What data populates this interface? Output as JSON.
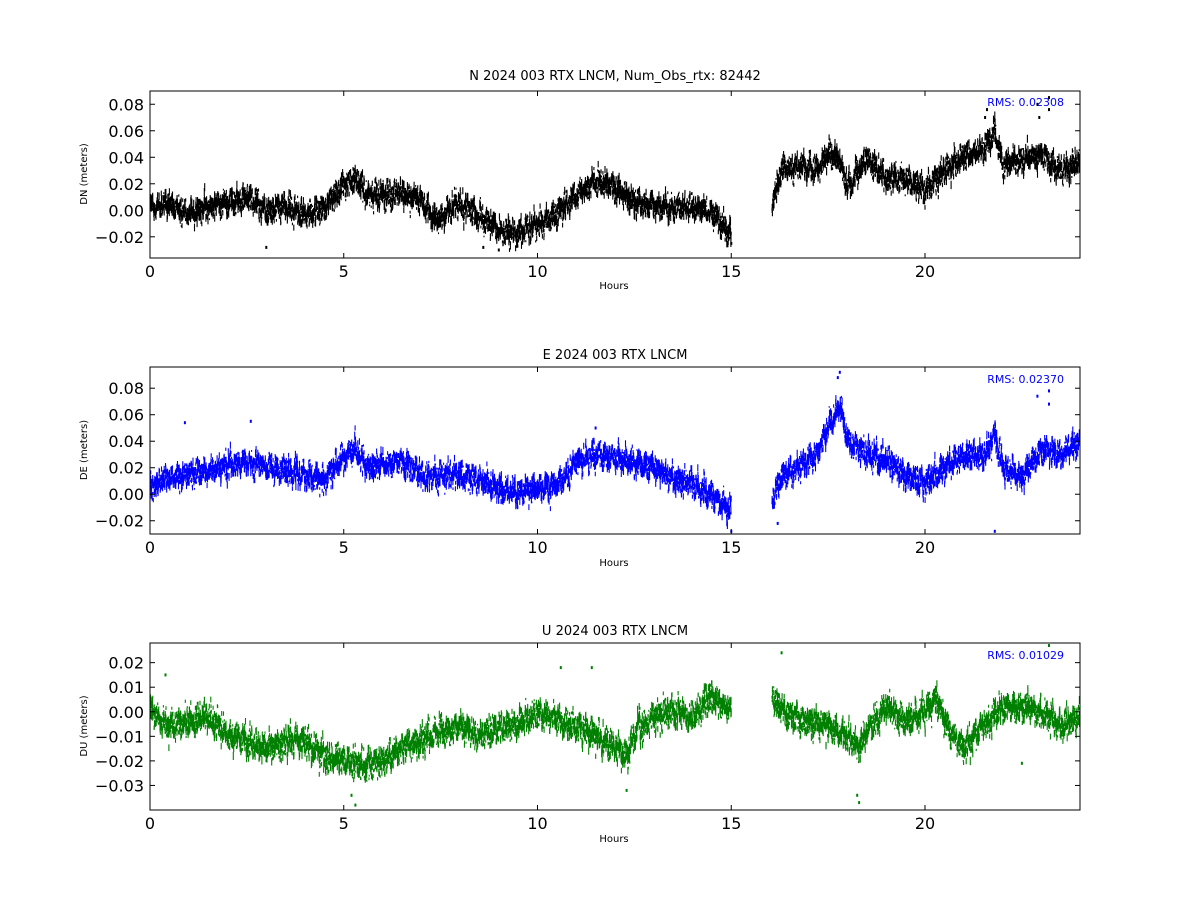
{
  "chart_data": [
    {
      "type": "scatter",
      "panel": "N",
      "title": "N 2024 003 RTX  LNCM, Num_Obs_rtx: 82442",
      "xlabel": "Hours",
      "ylabel": "DN (meters)",
      "xlim": [
        0,
        24
      ],
      "ylim": [
        -0.036,
        0.09
      ],
      "xticks": [
        0,
        5,
        10,
        15,
        20
      ],
      "yticks": [
        -0.02,
        0.0,
        0.02,
        0.04,
        0.06,
        0.08
      ],
      "ytick_labels": [
        "−0.02",
        "0.00",
        "0.02",
        "0.04",
        "0.06",
        "0.08"
      ],
      "color": "#000000",
      "annotation": "RMS:  0.02308",
      "annotation_color": "#0000ff",
      "gap": [
        15.0,
        16.05
      ],
      "trend": [
        [
          0.0,
          0.002
        ],
        [
          0.5,
          0.004
        ],
        [
          1.0,
          -0.002
        ],
        [
          1.5,
          0.003
        ],
        [
          2.0,
          0.006
        ],
        [
          2.5,
          0.01
        ],
        [
          3.0,
          0.0
        ],
        [
          3.5,
          0.003
        ],
        [
          4.0,
          -0.004
        ],
        [
          4.5,
          0.003
        ],
        [
          5.0,
          0.018
        ],
        [
          5.3,
          0.024
        ],
        [
          5.6,
          0.012
        ],
        [
          6.0,
          0.012
        ],
        [
          6.5,
          0.012
        ],
        [
          7.0,
          0.008
        ],
        [
          7.3,
          -0.008
        ],
        [
          7.6,
          -0.003
        ],
        [
          8.0,
          0.006
        ],
        [
          8.5,
          -0.005
        ],
        [
          9.0,
          -0.015
        ],
        [
          9.5,
          -0.018
        ],
        [
          10.0,
          -0.01
        ],
        [
          10.5,
          -0.003
        ],
        [
          11.0,
          0.012
        ],
        [
          11.5,
          0.023
        ],
        [
          12.0,
          0.016
        ],
        [
          12.5,
          0.006
        ],
        [
          13.0,
          0.004
        ],
        [
          13.5,
          0.002
        ],
        [
          14.0,
          0.003
        ],
        [
          14.5,
          -0.002
        ],
        [
          15.0,
          -0.018
        ],
        [
          16.05,
          0.004
        ],
        [
          16.3,
          0.03
        ],
        [
          16.7,
          0.034
        ],
        [
          17.2,
          0.03
        ],
        [
          17.5,
          0.043
        ],
        [
          17.8,
          0.038
        ],
        [
          18.0,
          0.018
        ],
        [
          18.5,
          0.038
        ],
        [
          19.0,
          0.024
        ],
        [
          19.5,
          0.024
        ],
        [
          20.0,
          0.015
        ],
        [
          20.5,
          0.03
        ],
        [
          21.0,
          0.04
        ],
        [
          21.5,
          0.045
        ],
        [
          21.8,
          0.06
        ],
        [
          22.0,
          0.035
        ],
        [
          22.5,
          0.038
        ],
        [
          23.0,
          0.042
        ],
        [
          23.5,
          0.03
        ],
        [
          24.0,
          0.037
        ]
      ],
      "noise": 0.0075,
      "outliers": [
        [
          21.6,
          0.076
        ],
        [
          21.55,
          0.07
        ],
        [
          22.9,
          0.08
        ],
        [
          22.95,
          0.07
        ],
        [
          23.2,
          0.085
        ],
        [
          23.2,
          0.076
        ],
        [
          9.0,
          -0.03
        ],
        [
          8.6,
          -0.028
        ],
        [
          15.0,
          -0.025
        ],
        [
          3.0,
          -0.028
        ],
        [
          10.9,
          0.016
        ]
      ]
    },
    {
      "type": "scatter",
      "panel": "E",
      "title": "E 2024 003 RTX  LNCM",
      "xlabel": "Hours",
      "ylabel": "DE (meters)",
      "xlim": [
        0,
        24
      ],
      "ylim": [
        -0.03,
        0.096
      ],
      "xticks": [
        0,
        5,
        10,
        15,
        20
      ],
      "yticks": [
        -0.02,
        0.0,
        0.02,
        0.04,
        0.06,
        0.08
      ],
      "ytick_labels": [
        "−0.02",
        "0.00",
        "0.02",
        "0.04",
        "0.06",
        "0.08"
      ],
      "color": "#0000ff",
      "annotation": "RMS:  0.02370",
      "annotation_color": "#0000ff",
      "gap": [
        15.0,
        16.05
      ],
      "trend": [
        [
          0.0,
          0.005
        ],
        [
          0.5,
          0.012
        ],
        [
          1.0,
          0.015
        ],
        [
          1.5,
          0.018
        ],
        [
          2.0,
          0.022
        ],
        [
          2.5,
          0.024
        ],
        [
          3.0,
          0.02
        ],
        [
          3.5,
          0.018
        ],
        [
          4.0,
          0.014
        ],
        [
          4.5,
          0.01
        ],
        [
          5.0,
          0.028
        ],
        [
          5.3,
          0.035
        ],
        [
          5.6,
          0.02
        ],
        [
          6.0,
          0.022
        ],
        [
          6.5,
          0.025
        ],
        [
          7.0,
          0.015
        ],
        [
          7.5,
          0.014
        ],
        [
          8.0,
          0.014
        ],
        [
          8.5,
          0.01
        ],
        [
          9.0,
          0.004
        ],
        [
          9.5,
          0.002
        ],
        [
          10.0,
          0.004
        ],
        [
          10.5,
          0.006
        ],
        [
          11.0,
          0.024
        ],
        [
          11.5,
          0.03
        ],
        [
          12.0,
          0.028
        ],
        [
          12.5,
          0.024
        ],
        [
          13.0,
          0.02
        ],
        [
          13.5,
          0.012
        ],
        [
          14.0,
          0.008
        ],
        [
          14.5,
          0.0
        ],
        [
          15.0,
          -0.012
        ],
        [
          16.05,
          -0.005
        ],
        [
          16.3,
          0.012
        ],
        [
          16.7,
          0.02
        ],
        [
          17.2,
          0.03
        ],
        [
          17.5,
          0.05
        ],
        [
          17.8,
          0.068
        ],
        [
          18.0,
          0.04
        ],
        [
          18.5,
          0.03
        ],
        [
          19.0,
          0.025
        ],
        [
          19.5,
          0.014
        ],
        [
          20.0,
          0.008
        ],
        [
          20.5,
          0.02
        ],
        [
          21.0,
          0.03
        ],
        [
          21.5,
          0.028
        ],
        [
          21.8,
          0.045
        ],
        [
          22.0,
          0.02
        ],
        [
          22.5,
          0.012
        ],
        [
          23.0,
          0.035
        ],
        [
          23.5,
          0.03
        ],
        [
          24.0,
          0.04
        ]
      ],
      "noise": 0.0075,
      "outliers": [
        [
          17.8,
          0.092
        ],
        [
          17.75,
          0.088
        ],
        [
          0.9,
          0.054
        ],
        [
          2.6,
          0.055
        ],
        [
          11.5,
          0.05
        ],
        [
          22.9,
          0.074
        ],
        [
          23.2,
          0.068
        ],
        [
          23.2,
          0.078
        ],
        [
          15.0,
          -0.028
        ],
        [
          16.2,
          -0.022
        ],
        [
          21.8,
          -0.028
        ]
      ]
    },
    {
      "type": "scatter",
      "panel": "U",
      "title": "U 2024 003 RTX  LNCM",
      "xlabel": "Hours",
      "ylabel": "DU (meters)",
      "xlim": [
        0,
        24
      ],
      "ylim": [
        -0.04,
        0.028
      ],
      "xticks": [
        0,
        5,
        10,
        15,
        20
      ],
      "yticks": [
        -0.03,
        -0.02,
        -0.01,
        0.0,
        0.01,
        0.02
      ],
      "ytick_labels": [
        "−0.03",
        "−0.02",
        "−0.01",
        "0.00",
        "0.01",
        "0.02"
      ],
      "color": "#008000",
      "annotation": "RMS:  0.01029",
      "annotation_color": "#0000ff",
      "gap": [
        15.0,
        16.05
      ],
      "trend": [
        [
          0.0,
          0.0
        ],
        [
          0.5,
          -0.006
        ],
        [
          1.0,
          -0.004
        ],
        [
          1.5,
          -0.002
        ],
        [
          2.0,
          -0.01
        ],
        [
          2.5,
          -0.012
        ],
        [
          3.0,
          -0.015
        ],
        [
          3.5,
          -0.012
        ],
        [
          4.0,
          -0.012
        ],
        [
          4.5,
          -0.018
        ],
        [
          5.0,
          -0.02
        ],
        [
          5.5,
          -0.022
        ],
        [
          6.0,
          -0.02
        ],
        [
          6.5,
          -0.015
        ],
        [
          7.0,
          -0.012
        ],
        [
          7.5,
          -0.008
        ],
        [
          8.0,
          -0.006
        ],
        [
          8.5,
          -0.01
        ],
        [
          9.0,
          -0.006
        ],
        [
          9.5,
          -0.005
        ],
        [
          10.0,
          0.0
        ],
        [
          10.5,
          -0.004
        ],
        [
          11.0,
          -0.006
        ],
        [
          11.5,
          -0.01
        ],
        [
          12.0,
          -0.014
        ],
        [
          12.3,
          -0.018
        ],
        [
          12.6,
          -0.006
        ],
        [
          13.0,
          -0.002
        ],
        [
          13.5,
          0.0
        ],
        [
          14.0,
          -0.002
        ],
        [
          14.5,
          0.006
        ],
        [
          15.0,
          0.0
        ],
        [
          16.05,
          0.006
        ],
        [
          16.5,
          -0.002
        ],
        [
          17.0,
          -0.004
        ],
        [
          17.5,
          -0.006
        ],
        [
          18.0,
          -0.01
        ],
        [
          18.3,
          -0.015
        ],
        [
          18.6,
          -0.006
        ],
        [
          19.0,
          0.002
        ],
        [
          19.5,
          -0.004
        ],
        [
          20.0,
          0.0
        ],
        [
          20.3,
          0.006
        ],
        [
          20.6,
          -0.008
        ],
        [
          21.0,
          -0.014
        ],
        [
          21.5,
          -0.006
        ],
        [
          22.0,
          0.002
        ],
        [
          22.5,
          0.002
        ],
        [
          23.0,
          0.0
        ],
        [
          23.5,
          -0.006
        ],
        [
          24.0,
          -0.002
        ]
      ],
      "noise": 0.0045,
      "outliers": [
        [
          18.3,
          -0.037
        ],
        [
          18.25,
          -0.034
        ],
        [
          5.3,
          -0.038
        ],
        [
          5.2,
          -0.034
        ],
        [
          23.2,
          0.027
        ],
        [
          16.3,
          0.024
        ],
        [
          0.4,
          0.015
        ],
        [
          10.6,
          0.018
        ],
        [
          11.4,
          0.018
        ],
        [
          22.5,
          -0.021
        ],
        [
          12.3,
          -0.032
        ]
      ]
    }
  ]
}
